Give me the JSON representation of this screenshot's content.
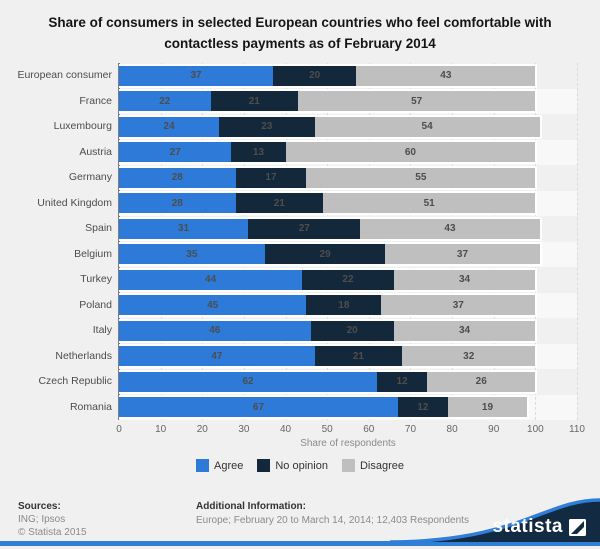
{
  "title": "Share of consumers in selected European countries who feel comfortable with contactless payments as of February 2014",
  "chart_data": {
    "type": "bar",
    "orientation": "horizontal",
    "stacked": true,
    "categories": [
      "European consumer",
      "France",
      "Luxembourg",
      "Austria",
      "Germany",
      "United Kingdom",
      "Spain",
      "Belgium",
      "Turkey",
      "Poland",
      "Italy",
      "Netherlands",
      "Czech Republic",
      "Romania"
    ],
    "series": [
      {
        "name": "Agree",
        "color": "#2d7ad8",
        "values": [
          37,
          22,
          24,
          27,
          28,
          28,
          31,
          35,
          44,
          45,
          46,
          47,
          62,
          67
        ]
      },
      {
        "name": "No opinion",
        "color": "#14283c",
        "values": [
          20,
          21,
          23,
          13,
          17,
          21,
          27,
          29,
          22,
          18,
          20,
          21,
          12,
          12
        ]
      },
      {
        "name": "Disagree",
        "color": "#bfbfbf",
        "values": [
          43,
          57,
          54,
          60,
          55,
          51,
          43,
          37,
          34,
          37,
          34,
          32,
          26,
          19
        ]
      }
    ],
    "xlabel": "Share of respondents",
    "xlim": [
      0,
      110
    ],
    "xticks": [
      0,
      10,
      20,
      30,
      40,
      50,
      60,
      70,
      80,
      90,
      100,
      110
    ],
    "grid": "vertical-dashed",
    "legend_position": "bottom"
  },
  "footer": {
    "sources_label": "Sources:",
    "sources": "ING; Ipsos",
    "copyright": "© Statista 2015",
    "additional_label": "Additional Information:",
    "additional": "Europe; February 20 to March 14, 2014; 12,403 Respondents"
  },
  "branding": {
    "logo_text": "statista",
    "band_color": "#122a42",
    "stripe_color": "#2f7ed8"
  }
}
